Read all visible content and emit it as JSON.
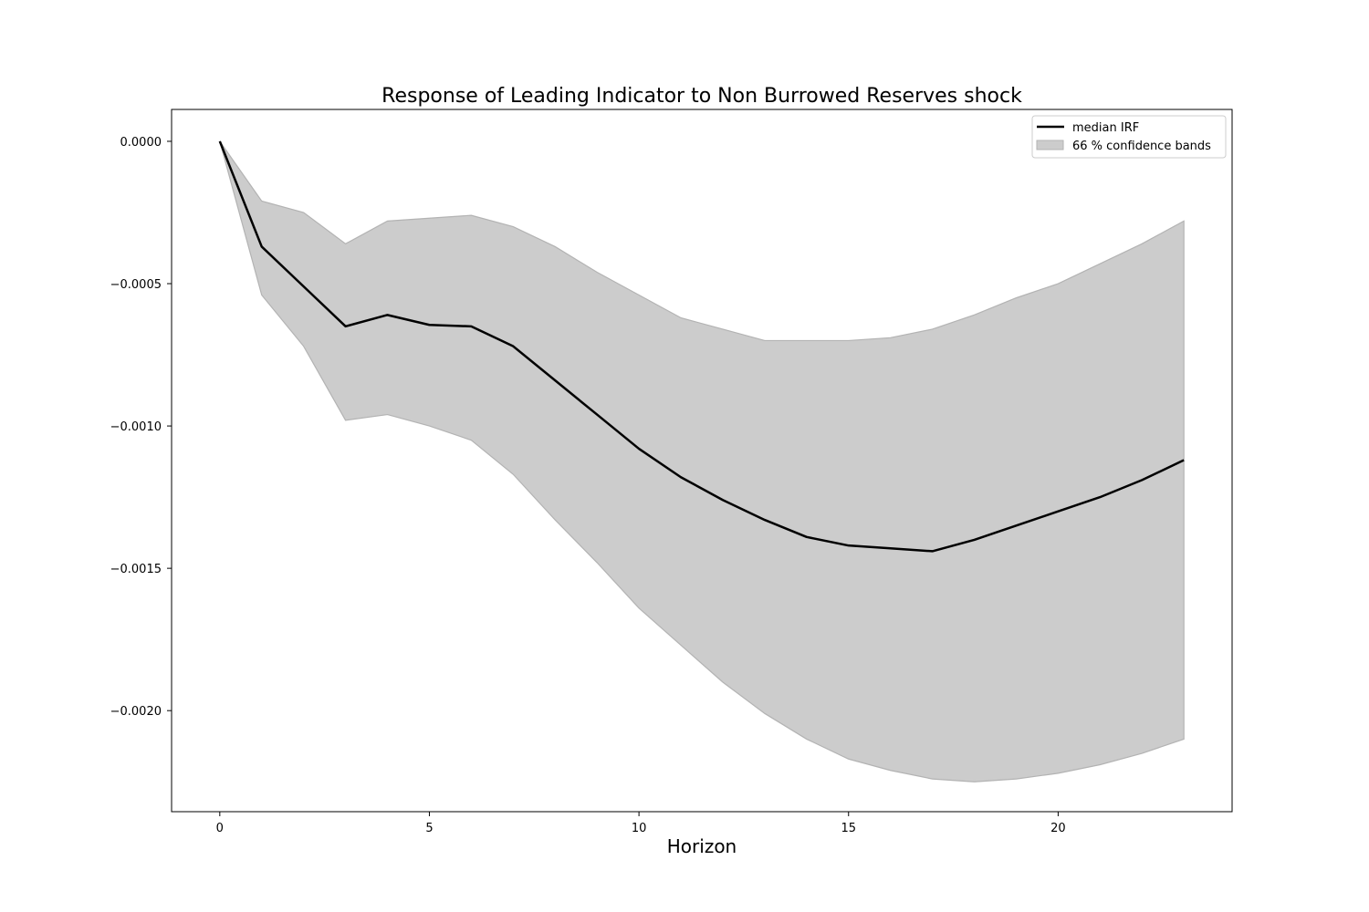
{
  "chart_data": {
    "type": "line",
    "title": "Response of Leading Indicator to Non Burrowed Reserves shock",
    "xlabel": "Horizon",
    "ylabel": "",
    "xlim": [
      -1.15,
      24.15
    ],
    "ylim": [
      -0.002355,
      0.000112
    ],
    "x_ticks": [
      0,
      5,
      10,
      15,
      20
    ],
    "y_ticks": [
      0.0,
      -0.0005,
      -0.001,
      -0.0015,
      -0.002
    ],
    "y_tick_labels": [
      "0.0000",
      "−0.0005",
      "−0.0010",
      "−0.0015",
      "−0.0020"
    ],
    "grid": false,
    "legend_position": "top-right",
    "x": [
      0,
      1,
      2,
      3,
      4,
      5,
      6,
      7,
      8,
      9,
      10,
      11,
      12,
      13,
      14,
      15,
      16,
      17,
      18,
      19,
      20,
      21,
      22,
      23
    ],
    "series": [
      {
        "name": "median IRF",
        "kind": "line",
        "color": "#000000",
        "values": [
          0.0,
          -0.00037,
          -0.00051,
          -0.00065,
          -0.00061,
          -0.000645,
          -0.00065,
          -0.00072,
          -0.00084,
          -0.00096,
          -0.00108,
          -0.00118,
          -0.00126,
          -0.00133,
          -0.00139,
          -0.00142,
          -0.00143,
          -0.00144,
          -0.0014,
          -0.00135,
          -0.0013,
          -0.00125,
          -0.00119,
          -0.00112
        ]
      },
      {
        "name": "66 % confidence bands",
        "kind": "band",
        "color": "#cccccc",
        "edge_color": "#b3b3b3",
        "upper": [
          0.0,
          -0.00021,
          -0.00025,
          -0.00036,
          -0.00028,
          -0.00027,
          -0.00026,
          -0.0003,
          -0.00037,
          -0.00046,
          -0.00054,
          -0.00062,
          -0.00066,
          -0.0007,
          -0.0007,
          -0.0007,
          -0.00069,
          -0.00066,
          -0.00061,
          -0.00055,
          -0.0005,
          -0.00043,
          -0.00036,
          -0.00028
        ],
        "lower": [
          0.0,
          -0.00054,
          -0.00072,
          -0.00098,
          -0.00096,
          -0.001,
          -0.00105,
          -0.00117,
          -0.00133,
          -0.00148,
          -0.00164,
          -0.00177,
          -0.0019,
          -0.00201,
          -0.0021,
          -0.00217,
          -0.00221,
          -0.00224,
          -0.00225,
          -0.00224,
          -0.00222,
          -0.00219,
          -0.00215,
          -0.0021
        ]
      }
    ]
  }
}
